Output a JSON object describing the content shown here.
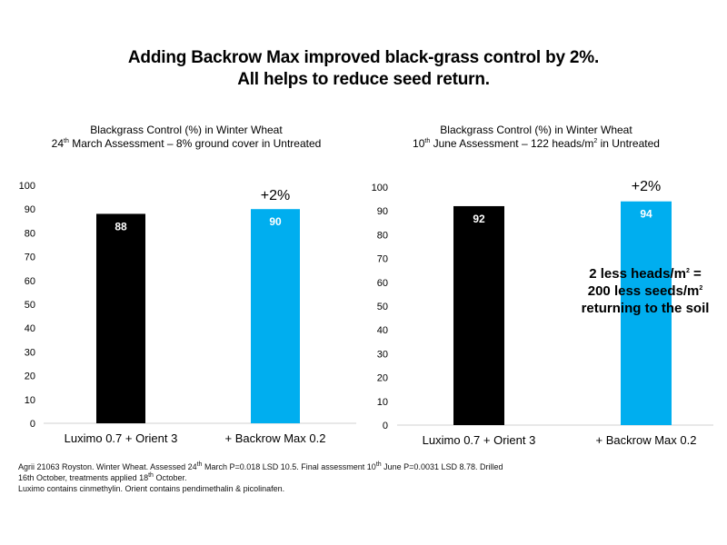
{
  "headline": {
    "line1": "Adding Backrow Max improved black-grass control by 2%.",
    "line2": "All helps to reduce seed return."
  },
  "chart_data": [
    {
      "type": "bar",
      "title": "Blackgrass Control (%) in Winter Wheat",
      "subtitle": {
        "day": "24",
        "day_suffix": "th",
        "rest": " March Assessment – 8% ground cover in Untreated"
      },
      "categories": [
        "Luximo 0.7 + Orient 3",
        "+ Backrow Max 0.2"
      ],
      "values": [
        88,
        90
      ],
      "data_labels": [
        "88",
        "90"
      ],
      "colors": [
        "#000000",
        "#00aeef"
      ],
      "ylim": [
        0,
        100
      ],
      "yticks": [
        0,
        10,
        20,
        30,
        40,
        50,
        60,
        70,
        80,
        90,
        100
      ],
      "grid": false,
      "annotation": "+2%"
    },
    {
      "type": "bar",
      "title": "Blackgrass Control (%) in Winter Wheat",
      "subtitle": {
        "day": "10",
        "day_suffix": "th",
        "rest": " June Assessment – 122 heads/m",
        "unit_sup": "2",
        "tail": " in Untreated"
      },
      "categories": [
        "Luximo 0.7 + Orient 3",
        "+ Backrow Max 0.2"
      ],
      "values": [
        92,
        94
      ],
      "data_labels": [
        "92",
        "94"
      ],
      "colors": [
        "#000000",
        "#00aeef"
      ],
      "ylim": [
        0,
        100
      ],
      "yticks": [
        0,
        10,
        20,
        30,
        40,
        50,
        60,
        70,
        80,
        90,
        100
      ],
      "grid": false,
      "annotation": "+2%"
    }
  ],
  "callout": {
    "line1_a": "2 less heads/m",
    "line1_sup": "2",
    "line1_b": " =",
    "line2_a": "200 less seeds/m",
    "line2_sup": "2",
    "line3": "returning to the soil"
  },
  "footnote": {
    "l1a": "Agrii 21063 Royston. Winter Wheat. Assessed 24",
    "l1sup1": "th",
    "l1b": " March P=0.018 LSD 10.5. Final assessment 10",
    "l1sup2": "th",
    "l1c": " June P=0.0031 LSD 8.78. Drilled",
    "l2a": "16th October, treatments applied 18",
    "l2sup": "th",
    "l2b": " October.",
    "l3": "Luximo contains cinmethylin. Orient contains pendimethalin & picolinafen."
  }
}
